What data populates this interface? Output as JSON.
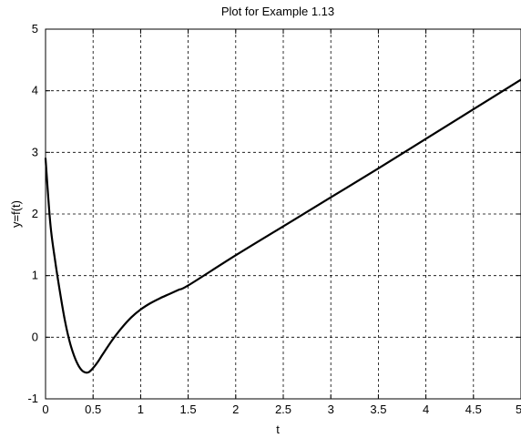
{
  "chart_data": {
    "type": "line",
    "title": "Plot for Example 1.13",
    "xlabel": "t",
    "ylabel": "y=f(t)",
    "xlim": [
      0,
      5
    ],
    "ylim": [
      -1,
      5
    ],
    "grid": true,
    "xticks": [
      "0",
      "0.5",
      "1",
      "1.5",
      "2",
      "2.5",
      "3",
      "3.5",
      "4",
      "4.5",
      "5"
    ],
    "yticks": [
      "-1",
      "0",
      "1",
      "2",
      "3",
      "4",
      "5"
    ],
    "series": [
      {
        "color": "#000000",
        "x": [
          0,
          0.05,
          0.1,
          0.15,
          0.2,
          0.25,
          0.3,
          0.35,
          0.4,
          0.45,
          0.5,
          0.55,
          0.6,
          0.7,
          0.8,
          0.9,
          1.0,
          1.1,
          1.2,
          1.3,
          1.4,
          1.5,
          2,
          2.5,
          3,
          3.5,
          4,
          4.5,
          5
        ],
        "y": [
          2.9,
          1.85,
          1.25,
          0.75,
          0.3,
          -0.05,
          -0.3,
          -0.47,
          -0.56,
          -0.57,
          -0.5,
          -0.4,
          -0.28,
          -0.05,
          0.15,
          0.32,
          0.45,
          0.55,
          0.63,
          0.7,
          0.77,
          0.84,
          1.33,
          1.8,
          2.27,
          2.74,
          3.22,
          3.7,
          4.18
        ]
      }
    ]
  }
}
